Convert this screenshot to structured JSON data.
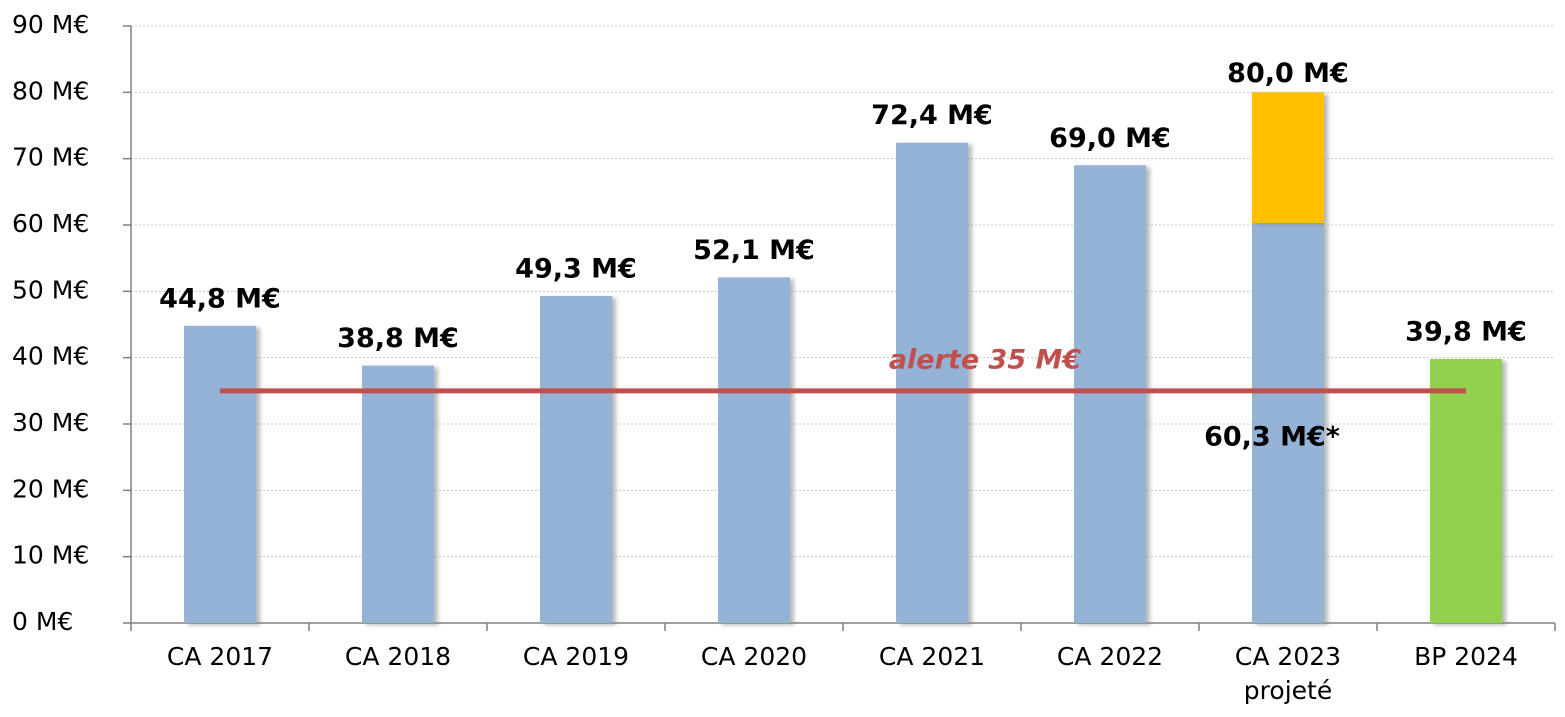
{
  "chart_data": {
    "type": "bar",
    "categories": [
      "CA 2017",
      "CA 2018",
      "CA 2019",
      "CA 2020",
      "CA 2021",
      "CA 2022",
      "CA 2023\nprojeté",
      "BP 2024"
    ],
    "series": [
      {
        "color": "#95b3d7",
        "colors": [
          "#95b3d7",
          "#95b3d7",
          "#95b3d7",
          "#95b3d7",
          "#95b3d7",
          "#95b3d7",
          "#95b3d7",
          "#92d050"
        ],
        "values": [
          44.8,
          38.8,
          49.3,
          52.1,
          72.4,
          69.0,
          60.3,
          39.8
        ],
        "value_labels": [
          "44,8 M€",
          "38,8 M€",
          "49,3 M€",
          "52,1 M€",
          "72,4 M€",
          "69,0 M€",
          "60,3 M€*",
          "39,8 M€"
        ]
      },
      {
        "color": "#ffc000",
        "values": [
          null,
          null,
          null,
          null,
          null,
          null,
          19.7,
          null
        ]
      }
    ],
    "totals": [
      null,
      null,
      null,
      null,
      null,
      null,
      80.0,
      null
    ],
    "total_labels": [
      null,
      null,
      null,
      null,
      null,
      null,
      "80,0 M€",
      null
    ],
    "ylim": [
      0,
      90
    ],
    "yticks": [
      {
        "value": 0,
        "label": "0 M€"
      },
      {
        "value": 10,
        "label": "10 M€"
      },
      {
        "value": 20,
        "label": "20 M€"
      },
      {
        "value": 30,
        "label": "30 M€"
      },
      {
        "value": 40,
        "label": "40 M€"
      },
      {
        "value": 50,
        "label": "50 M€"
      },
      {
        "value": 60,
        "label": "60 M€"
      },
      {
        "value": 70,
        "label": "70 M€"
      },
      {
        "value": 80,
        "label": "80 M€"
      },
      {
        "value": 90,
        "label": "90 M€"
      }
    ],
    "grid": true,
    "threshold": {
      "value": 35,
      "label": "alerte 35 M€",
      "color": "#c0504d"
    }
  }
}
